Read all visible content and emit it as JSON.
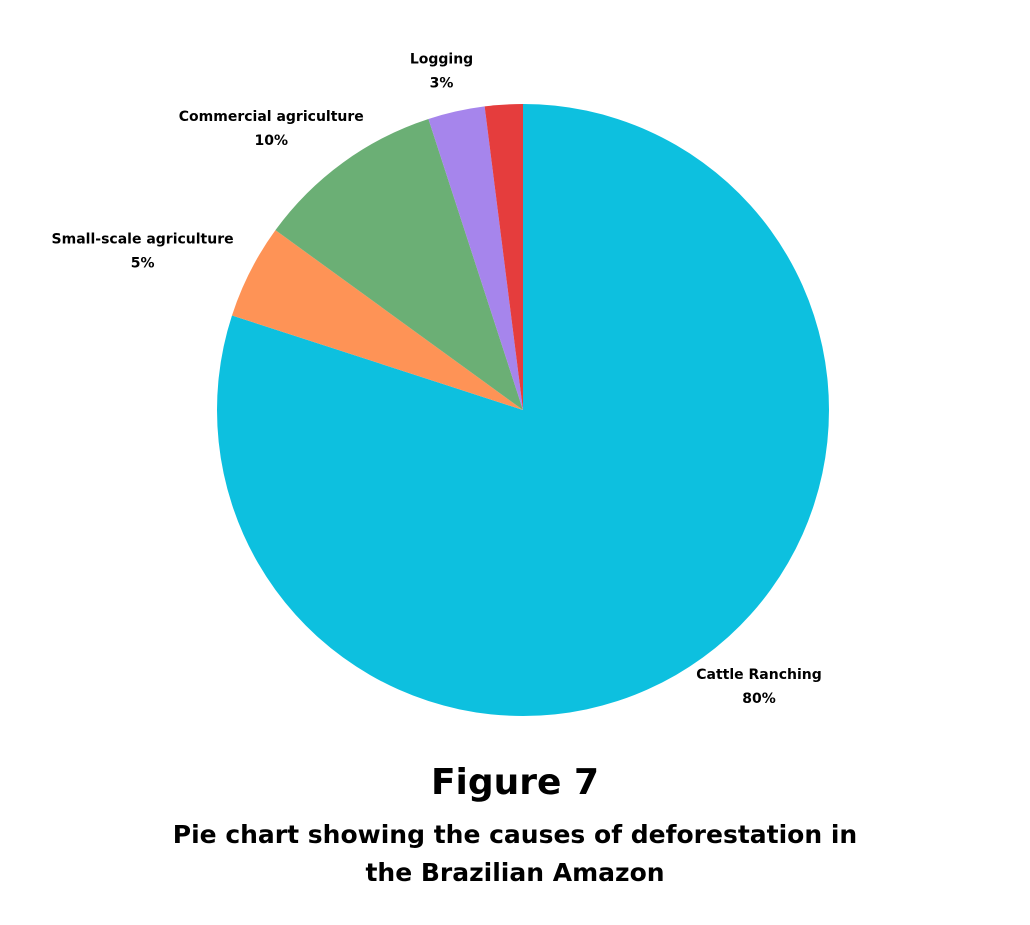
{
  "chart_data": {
    "type": "pie",
    "title": "Figure 7",
    "subtitle": "Pie chart showing the causes of deforestation in the Brazilian Amazon",
    "categories": [
      "Cattle Ranching",
      "Small-scale agriculture",
      "Commercial agriculture",
      "Logging",
      null
    ],
    "values": [
      80,
      5,
      10,
      3,
      2
    ],
    "value_labels": [
      "80%",
      "5%",
      "10%",
      "3%",
      null
    ],
    "colors": [
      "#0dc0df",
      "#fe9356",
      "#6baf75",
      "#a685ec",
      "#e53d3d"
    ]
  }
}
